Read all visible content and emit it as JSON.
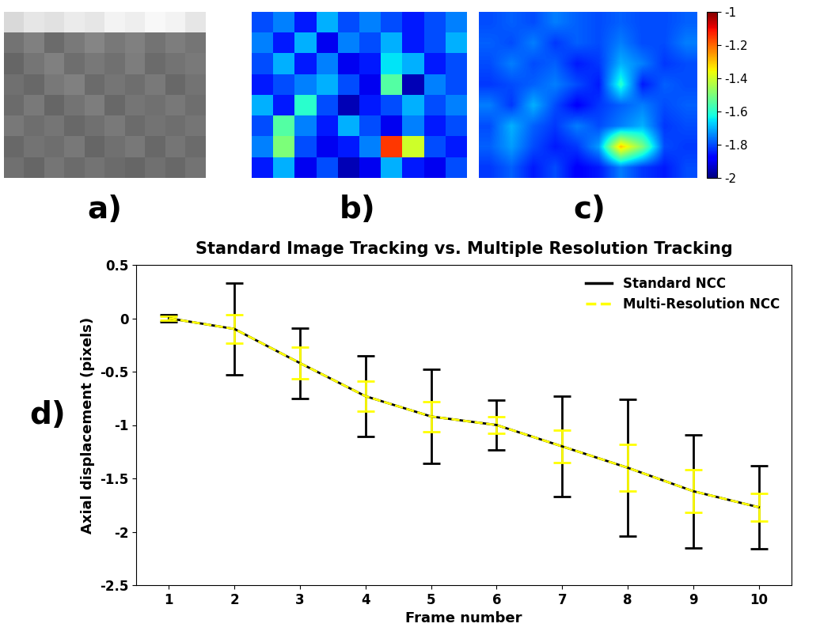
{
  "chart_data": [
    {
      "type": "image",
      "annotation": "a)",
      "tick_labels": false,
      "color": "gray",
      "color_range": [
        0,
        1
      ],
      "cells": [
        [
          0.85,
          0.9,
          0.88,
          0.92,
          0.9,
          0.95,
          0.93,
          0.97,
          0.95,
          0.9
        ],
        [
          0.45,
          0.5,
          0.42,
          0.48,
          0.52,
          0.47,
          0.5,
          0.45,
          0.49,
          0.46
        ],
        [
          0.4,
          0.46,
          0.5,
          0.43,
          0.47,
          0.44,
          0.49,
          0.42,
          0.45,
          0.48
        ],
        [
          0.44,
          0.41,
          0.47,
          0.5,
          0.42,
          0.46,
          0.43,
          0.48,
          0.41,
          0.45
        ],
        [
          0.42,
          0.48,
          0.4,
          0.45,
          0.49,
          0.41,
          0.46,
          0.44,
          0.47,
          0.43
        ],
        [
          0.47,
          0.43,
          0.46,
          0.41,
          0.44,
          0.48,
          0.42,
          0.45,
          0.43,
          0.46
        ],
        [
          0.41,
          0.45,
          0.43,
          0.47,
          0.4,
          0.44,
          0.47,
          0.41,
          0.46,
          0.42
        ],
        [
          0.44,
          0.4,
          0.46,
          0.42,
          0.45,
          0.42,
          0.4,
          0.44,
          0.41,
          0.45
        ]
      ]
    },
    {
      "type": "heatmap",
      "annotation": "b)",
      "tick_labels": false,
      "color": "jet",
      "color_range": [
        -2,
        -1
      ],
      "cells": [
        [
          -1.8,
          -1.75,
          -1.85,
          -1.7,
          -1.8,
          -1.75,
          -1.8,
          -1.85,
          -1.8,
          -1.75
        ],
        [
          -1.75,
          -1.85,
          -1.7,
          -1.9,
          -1.75,
          -1.8,
          -1.7,
          -1.85,
          -1.8,
          -1.7
        ],
        [
          -1.8,
          -1.7,
          -1.85,
          -1.75,
          -1.9,
          -1.85,
          -1.65,
          -1.7,
          -1.85,
          -1.8
        ],
        [
          -1.85,
          -1.8,
          -1.75,
          -1.7,
          -1.8,
          -1.9,
          -1.55,
          -1.95,
          -1.75,
          -1.8
        ],
        [
          -1.7,
          -1.85,
          -1.6,
          -1.8,
          -1.95,
          -1.85,
          -1.8,
          -1.7,
          -1.8,
          -1.75
        ],
        [
          -1.8,
          -1.55,
          -1.75,
          -1.85,
          -1.7,
          -1.8,
          -1.9,
          -1.75,
          -1.85,
          -1.8
        ],
        [
          -1.75,
          -1.5,
          -1.8,
          -1.9,
          -1.85,
          -1.75,
          -1.15,
          -1.4,
          -1.8,
          -1.85
        ],
        [
          -1.85,
          -1.7,
          -1.9,
          -1.8,
          -1.95,
          -1.9,
          -1.7,
          -1.85,
          -1.9,
          -1.8
        ]
      ]
    },
    {
      "type": "heatmap",
      "annotation": "c)",
      "tick_labels": false,
      "color": "jet",
      "color_range": [
        -2,
        -1
      ],
      "colorbar_ticks": [
        -1,
        -1.2,
        -1.4,
        -1.6,
        -1.8,
        -2
      ],
      "cells": [
        [
          -1.8,
          -1.78,
          -1.8,
          -1.75,
          -1.78,
          -1.8,
          -1.78,
          -1.8,
          -1.8,
          -1.78
        ],
        [
          -1.78,
          -1.8,
          -1.75,
          -1.82,
          -1.78,
          -1.8,
          -1.75,
          -1.8,
          -1.8,
          -1.75
        ],
        [
          -1.8,
          -1.75,
          -1.8,
          -1.78,
          -1.85,
          -1.82,
          -1.7,
          -1.75,
          -1.82,
          -1.8
        ],
        [
          -1.82,
          -1.8,
          -1.78,
          -1.75,
          -1.8,
          -1.85,
          -1.6,
          -1.85,
          -1.78,
          -1.8
        ],
        [
          -1.75,
          -1.82,
          -1.7,
          -1.8,
          -1.88,
          -1.82,
          -1.78,
          -1.75,
          -1.8,
          -1.78
        ],
        [
          -1.8,
          -1.7,
          -1.78,
          -1.82,
          -1.75,
          -1.8,
          -1.75,
          -1.7,
          -1.82,
          -1.8
        ],
        [
          -1.78,
          -1.72,
          -1.8,
          -1.85,
          -1.82,
          -1.72,
          -1.3,
          -1.5,
          -1.8,
          -1.82
        ],
        [
          -1.82,
          -1.78,
          -1.85,
          -1.8,
          -1.88,
          -1.85,
          -1.75,
          -1.82,
          -1.85,
          -1.8
        ]
      ]
    },
    {
      "type": "line",
      "annotation": "d)",
      "title": "Standard Image Tracking vs. Multiple Resolution Tracking",
      "x_label": "Frame number",
      "y_label": "Axial displacement (pixels)",
      "x": [
        1,
        2,
        3,
        4,
        5,
        6,
        7,
        8,
        9,
        10
      ],
      "xlim": [
        0.5,
        10.5
      ],
      "xticks": [
        1,
        2,
        3,
        4,
        5,
        6,
        7,
        8,
        9,
        10
      ],
      "ylim": [
        -2.5,
        0.5
      ],
      "yticks": [
        -2.5,
        -2,
        -1.5,
        -1,
        -0.5,
        0,
        0.5
      ],
      "grid": false,
      "legend": "upper right",
      "series": [
        {
          "name": "Standard NCC",
          "color": "#000000",
          "line_style": "solid",
          "values": [
            0,
            -0.1,
            -0.42,
            -0.73,
            -0.92,
            -1.0,
            -1.2,
            -1.4,
            -1.62,
            -1.77
          ],
          "errors": [
            0.03,
            0.43,
            0.33,
            0.38,
            0.44,
            0.23,
            0.47,
            0.64,
            0.53,
            0.39
          ]
        },
        {
          "name": "Multi-Resolution NCC",
          "color": "#ffff00",
          "line_style": "dashed",
          "values": [
            0,
            -0.1,
            -0.42,
            -0.73,
            -0.92,
            -1.0,
            -1.2,
            -1.4,
            -1.62,
            -1.77
          ],
          "errors": [
            0.02,
            0.13,
            0.15,
            0.14,
            0.14,
            0.08,
            0.15,
            0.22,
            0.2,
            0.13
          ]
        }
      ]
    }
  ]
}
